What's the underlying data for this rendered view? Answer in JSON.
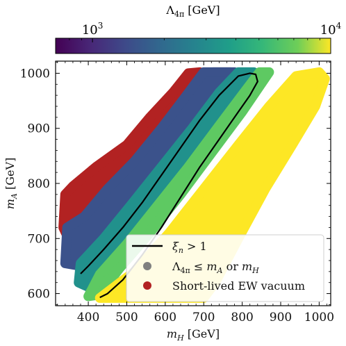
{
  "chart_data": {
    "type": "scatter",
    "xlabel": "m_H [GeV]",
    "ylabel": "m_A [GeV]",
    "xlim": [
      315,
      1030
    ],
    "ylim": [
      578,
      1022
    ],
    "xticks": [
      400,
      500,
      600,
      700,
      800,
      900,
      1000
    ],
    "yticks": [
      600,
      700,
      800,
      900,
      1000
    ],
    "colorbar": {
      "label": "Λ_4π [GeV]",
      "scale": "log",
      "range": [
        700,
        10000
      ],
      "ticks": [
        {
          "value": 1000,
          "label": "10^3"
        },
        {
          "value": 10000,
          "label": "10^4"
        }
      ],
      "colormap": "viridis"
    },
    "legend": {
      "placement": "lower-right",
      "entries": [
        {
          "marker": "line",
          "color": "#000000",
          "label": "ξ_n > 1"
        },
        {
          "marker": "dot",
          "color": "#808080",
          "label": "Λ_4π ≤ m_A or m_H"
        },
        {
          "marker": "dot",
          "color": "#b22222",
          "label": "Short-lived EW vacuum"
        }
      ]
    },
    "series": [
      {
        "category": "short_lived_ew_vacuum",
        "color": "#b22222",
        "region": [
          [
            335,
            720
          ],
          [
            340,
            780
          ],
          [
            360,
            795
          ],
          [
            420,
            830
          ],
          [
            500,
            870
          ],
          [
            560,
            920
          ],
          [
            620,
            965
          ],
          [
            660,
            1000
          ],
          [
            690,
            1002
          ],
          [
            635,
            935
          ],
          [
            570,
            880
          ],
          [
            520,
            838
          ],
          [
            470,
            800
          ],
          [
            430,
            770
          ],
          [
            390,
            735
          ],
          [
            345,
            705
          ]
        ]
      },
      {
        "category": "lambda_le_mass",
        "color": "#808080",
        "region": [
          [
            400,
            690
          ],
          [
            460,
            750
          ],
          [
            520,
            800
          ],
          [
            580,
            855
          ],
          [
            640,
            915
          ],
          [
            690,
            970
          ],
          [
            725,
            1002
          ],
          [
            770,
            1002
          ],
          [
            720,
            950
          ],
          [
            660,
            890
          ],
          [
            600,
            830
          ],
          [
            545,
            775
          ],
          [
            480,
            720
          ],
          [
            425,
            675
          ]
        ]
      },
      {
        "category": "low_lambda_purple",
        "color": "#3b528b",
        "region": [
          [
            340,
            655
          ],
          [
            345,
            720
          ],
          [
            390,
            740
          ],
          [
            450,
            790
          ],
          [
            520,
            840
          ],
          [
            590,
            900
          ],
          [
            650,
            955
          ],
          [
            700,
            1002
          ],
          [
            780,
            1002
          ],
          [
            720,
            945
          ],
          [
            650,
            880
          ],
          [
            580,
            815
          ],
          [
            500,
            745
          ],
          [
            430,
            690
          ],
          [
            380,
            650
          ]
        ]
      },
      {
        "category": "mid_lambda_teal",
        "color": "#21918c",
        "region": [
          [
            375,
            620
          ],
          [
            380,
            655
          ],
          [
            440,
            700
          ],
          [
            510,
            760
          ],
          [
            590,
            830
          ],
          [
            670,
            900
          ],
          [
            740,
            965
          ],
          [
            790,
            1002
          ],
          [
            830,
            1002
          ],
          [
            760,
            930
          ],
          [
            690,
            860
          ],
          [
            610,
            780
          ],
          [
            530,
            710
          ],
          [
            450,
            650
          ],
          [
            400,
            612
          ]
        ]
      },
      {
        "category": "high_lambda_green",
        "color": "#5ec962",
        "region": [
          [
            400,
            595
          ],
          [
            430,
            635
          ],
          [
            500,
            690
          ],
          [
            580,
            760
          ],
          [
            660,
            830
          ],
          [
            740,
            905
          ],
          [
            810,
            970
          ],
          [
            845,
            1002
          ],
          [
            870,
            1002
          ],
          [
            800,
            930
          ],
          [
            720,
            855
          ],
          [
            640,
            780
          ],
          [
            560,
            710
          ],
          [
            480,
            645
          ],
          [
            430,
            598
          ]
        ]
      },
      {
        "category": "very_high_lambda_yellow",
        "color": "#fde725",
        "region": [
          [
            430,
            592
          ],
          [
            520,
            640
          ],
          [
            610,
            710
          ],
          [
            700,
            790
          ],
          [
            790,
            870
          ],
          [
            870,
            940
          ],
          [
            940,
            995
          ],
          [
            1000,
            1002
          ],
          [
            1015,
            990
          ],
          [
            990,
            940
          ],
          [
            930,
            870
          ],
          [
            860,
            790
          ],
          [
            790,
            700
          ],
          [
            730,
            620
          ],
          [
            700,
            592
          ]
        ]
      }
    ],
    "boundary_curves": [
      {
        "label": "ξ_n > 1",
        "color": "#000000",
        "points": [
          [
            380,
            636
          ],
          [
            400,
            650
          ],
          [
            440,
            680
          ],
          [
            490,
            720
          ],
          [
            540,
            765
          ],
          [
            590,
            815
          ],
          [
            640,
            865
          ],
          [
            690,
            915
          ],
          [
            740,
            960
          ],
          [
            790,
            995
          ],
          [
            820,
            1000
          ],
          [
            835,
            998
          ],
          [
            840,
            985
          ],
          [
            820,
            960
          ],
          [
            790,
            930
          ],
          [
            740,
            880
          ],
          [
            690,
            830
          ],
          [
            640,
            775
          ],
          [
            590,
            720
          ],
          [
            540,
            670
          ],
          [
            490,
            625
          ],
          [
            450,
            600
          ],
          [
            430,
            593
          ]
        ]
      }
    ]
  }
}
